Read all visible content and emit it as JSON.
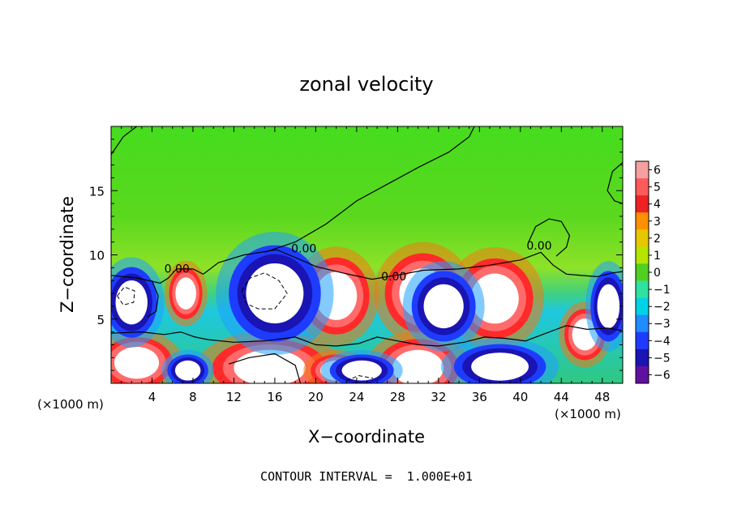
{
  "chart_data": {
    "type": "heatmap",
    "title": "zonal velocity",
    "xlabel": "X−coordinate",
    "ylabel": "Z−coordinate",
    "x_unit_left": "(×1000 m)",
    "x_unit_right": "(×1000 m)",
    "xlim": [
      0,
      50
    ],
    "ylim": [
      0,
      20
    ],
    "xticks": [
      4,
      8,
      12,
      16,
      20,
      24,
      28,
      32,
      36,
      40,
      44,
      48
    ],
    "yticks": [
      5,
      10,
      15
    ],
    "colorbar": {
      "levels": [
        6,
        5,
        4,
        3,
        2,
        1,
        0,
        -1,
        -2,
        -3,
        -4,
        -5,
        -6
      ],
      "labels": [
        "6",
        "5",
        "4",
        "3",
        "2",
        "1",
        "0",
        "−1",
        "−2",
        "−3",
        "−4",
        "−5",
        "−6"
      ],
      "colors": [
        "#f5a0a0",
        "#ff5a5a",
        "#ee2222",
        "#ff9000",
        "#e6c800",
        "#b4e600",
        "#50d020",
        "#30e2a0",
        "#00d2e6",
        "#1f8cff",
        "#1e3cff",
        "#1a14b4",
        "#6010a0"
      ]
    },
    "contour_labels": [
      {
        "text": "0.00",
        "x": 5.2,
        "y": 8.6
      },
      {
        "text": "0.00",
        "x": 17.6,
        "y": 10.2
      },
      {
        "text": "0.00",
        "x": 26.4,
        "y": 8.0
      },
      {
        "text": "0.00",
        "x": 40.6,
        "y": 10.4
      }
    ],
    "annotation": "CONTOUR INTERVAL =  1.000E+01",
    "anomalies": [
      {
        "kind": "pos",
        "x": 30.5,
        "y": 7.0,
        "rx": 3.0,
        "ry": 2.5
      },
      {
        "kind": "pos",
        "x": 22.0,
        "y": 6.8,
        "rx": 2.6,
        "ry": 2.4
      },
      {
        "kind": "pos",
        "x": 37.5,
        "y": 6.6,
        "rx": 3.0,
        "ry": 2.5
      },
      {
        "kind": "pos",
        "x": 7.3,
        "y": 7.0,
        "rx": 1.3,
        "ry": 1.6
      },
      {
        "kind": "pos",
        "x": 15.5,
        "y": 1.2,
        "rx": 4.5,
        "ry": 1.8
      },
      {
        "kind": "pos",
        "x": 2.5,
        "y": 1.6,
        "rx": 2.8,
        "ry": 1.6
      },
      {
        "kind": "pos",
        "x": 30.0,
        "y": 1.2,
        "rx": 3.2,
        "ry": 1.8
      },
      {
        "kind": "pos",
        "x": 46.3,
        "y": 3.8,
        "rx": 1.6,
        "ry": 1.6
      },
      {
        "kind": "pos",
        "x": 22.0,
        "y": 1.0,
        "rx": 2.0,
        "ry": 1.0
      },
      {
        "kind": "neg",
        "x": 16.0,
        "y": 7.0,
        "rx": 3.6,
        "ry": 3.0
      },
      {
        "kind": "neg",
        "x": 2.0,
        "y": 6.3,
        "rx": 2.0,
        "ry": 2.2
      },
      {
        "kind": "neg",
        "x": 32.5,
        "y": 6.0,
        "rx": 2.5,
        "ry": 2.2
      },
      {
        "kind": "neg",
        "x": 48.6,
        "y": 6.0,
        "rx": 1.4,
        "ry": 2.2
      },
      {
        "kind": "neg",
        "x": 38.0,
        "y": 1.3,
        "rx": 3.6,
        "ry": 1.4
      },
      {
        "kind": "neg",
        "x": 24.5,
        "y": 1.0,
        "rx": 2.5,
        "ry": 1.0
      },
      {
        "kind": "neg",
        "x": 7.5,
        "y": 1.0,
        "rx": 1.6,
        "ry": 1.0
      }
    ],
    "contour_lines": [
      [
        [
          0,
          2.1
        ],
        [
          0,
          17.8
        ],
        [
          1.2,
          19.2
        ],
        [
          2.5,
          20
        ]
      ],
      [
        [
          15,
          10.2
        ],
        [
          18,
          11.0
        ],
        [
          21,
          12.4
        ],
        [
          24,
          14.2
        ],
        [
          27,
          15.5
        ],
        [
          30,
          16.8
        ],
        [
          33,
          18.0
        ],
        [
          35,
          19.2
        ],
        [
          35.5,
          20
        ]
      ],
      [
        [
          50,
          17.2
        ],
        [
          49,
          16.5
        ],
        [
          48.5,
          15.0
        ],
        [
          49.2,
          14.2
        ],
        [
          50,
          14.0
        ]
      ],
      [
        [
          0,
          8.4
        ],
        [
          2.5,
          8.2
        ],
        [
          4.8,
          7.8
        ],
        [
          5.6,
          8.2
        ],
        [
          6.4,
          8.9
        ],
        [
          8.0,
          8.9
        ],
        [
          9.0,
          8.5
        ],
        [
          10.5,
          9.4
        ],
        [
          13.0,
          10.0
        ],
        [
          16.2,
          10.4
        ],
        [
          18.3,
          9.7
        ],
        [
          20.0,
          9.1
        ],
        [
          22.6,
          8.6
        ],
        [
          25.5,
          8.1
        ],
        [
          28.5,
          8.5
        ],
        [
          30.5,
          8.8
        ],
        [
          34.0,
          8.9
        ],
        [
          37.0,
          9.2
        ],
        [
          40.0,
          9.6
        ],
        [
          42.0,
          10.2
        ],
        [
          43.2,
          9.2
        ],
        [
          44.5,
          8.5
        ],
        [
          46.0,
          8.4
        ],
        [
          47.5,
          8.3
        ],
        [
          49.0,
          8.6
        ],
        [
          50,
          8.7
        ]
      ],
      [
        [
          0,
          3.9
        ],
        [
          3.0,
          4.0
        ],
        [
          5.2,
          3.8
        ],
        [
          6.8,
          4.0
        ],
        [
          8.2,
          3.6
        ],
        [
          9.5,
          3.4
        ],
        [
          12.0,
          3.2
        ],
        [
          15.0,
          3.3
        ],
        [
          18.0,
          3.6
        ],
        [
          20.0,
          3.0
        ],
        [
          22.0,
          2.9
        ],
        [
          24.2,
          3.1
        ],
        [
          26.0,
          3.6
        ],
        [
          28.0,
          3.3
        ],
        [
          30.0,
          3.0
        ],
        [
          32.0,
          2.9
        ],
        [
          34.5,
          3.2
        ],
        [
          36.5,
          3.6
        ],
        [
          38.5,
          3.5
        ],
        [
          40.5,
          3.3
        ],
        [
          42.5,
          3.9
        ],
        [
          44.5,
          4.5
        ],
        [
          46.5,
          4.2
        ],
        [
          48.5,
          4.3
        ],
        [
          50,
          4.1
        ]
      ],
      [
        [
          40.8,
          11.0
        ],
        [
          41.5,
          12.2
        ],
        [
          42.8,
          12.8
        ],
        [
          44.0,
          12.6
        ],
        [
          44.8,
          11.5
        ],
        [
          44.5,
          10.6
        ],
        [
          43.5,
          9.9
        ]
      ],
      [
        [
          11.5,
          1.5
        ],
        [
          13.5,
          2.0
        ],
        [
          16.0,
          2.3
        ],
        [
          18.0,
          1.4
        ],
        [
          18.5,
          0
        ]
      ],
      [
        [
          4.0,
          8.0
        ],
        [
          4.6,
          6.8
        ],
        [
          4.4,
          5.6
        ],
        [
          3.6,
          5.2
        ]
      ]
    ],
    "dashed_contours": [
      [
        [
          12.8,
          7.2
        ],
        [
          13.6,
          8.2
        ],
        [
          15.0,
          8.6
        ],
        [
          16.4,
          8.0
        ],
        [
          17.2,
          7.0
        ],
        [
          16.0,
          5.8
        ],
        [
          14.4,
          5.8
        ],
        [
          13.2,
          6.2
        ],
        [
          12.8,
          7.2
        ]
      ],
      [
        [
          0.6,
          6.8
        ],
        [
          1.3,
          7.5
        ],
        [
          2.3,
          7.2
        ],
        [
          2.2,
          6.3
        ],
        [
          1.2,
          6.1
        ],
        [
          0.6,
          6.8
        ]
      ],
      [
        [
          23.0,
          0.2
        ],
        [
          24.2,
          0.6
        ],
        [
          25.6,
          0.4
        ]
      ]
    ]
  }
}
